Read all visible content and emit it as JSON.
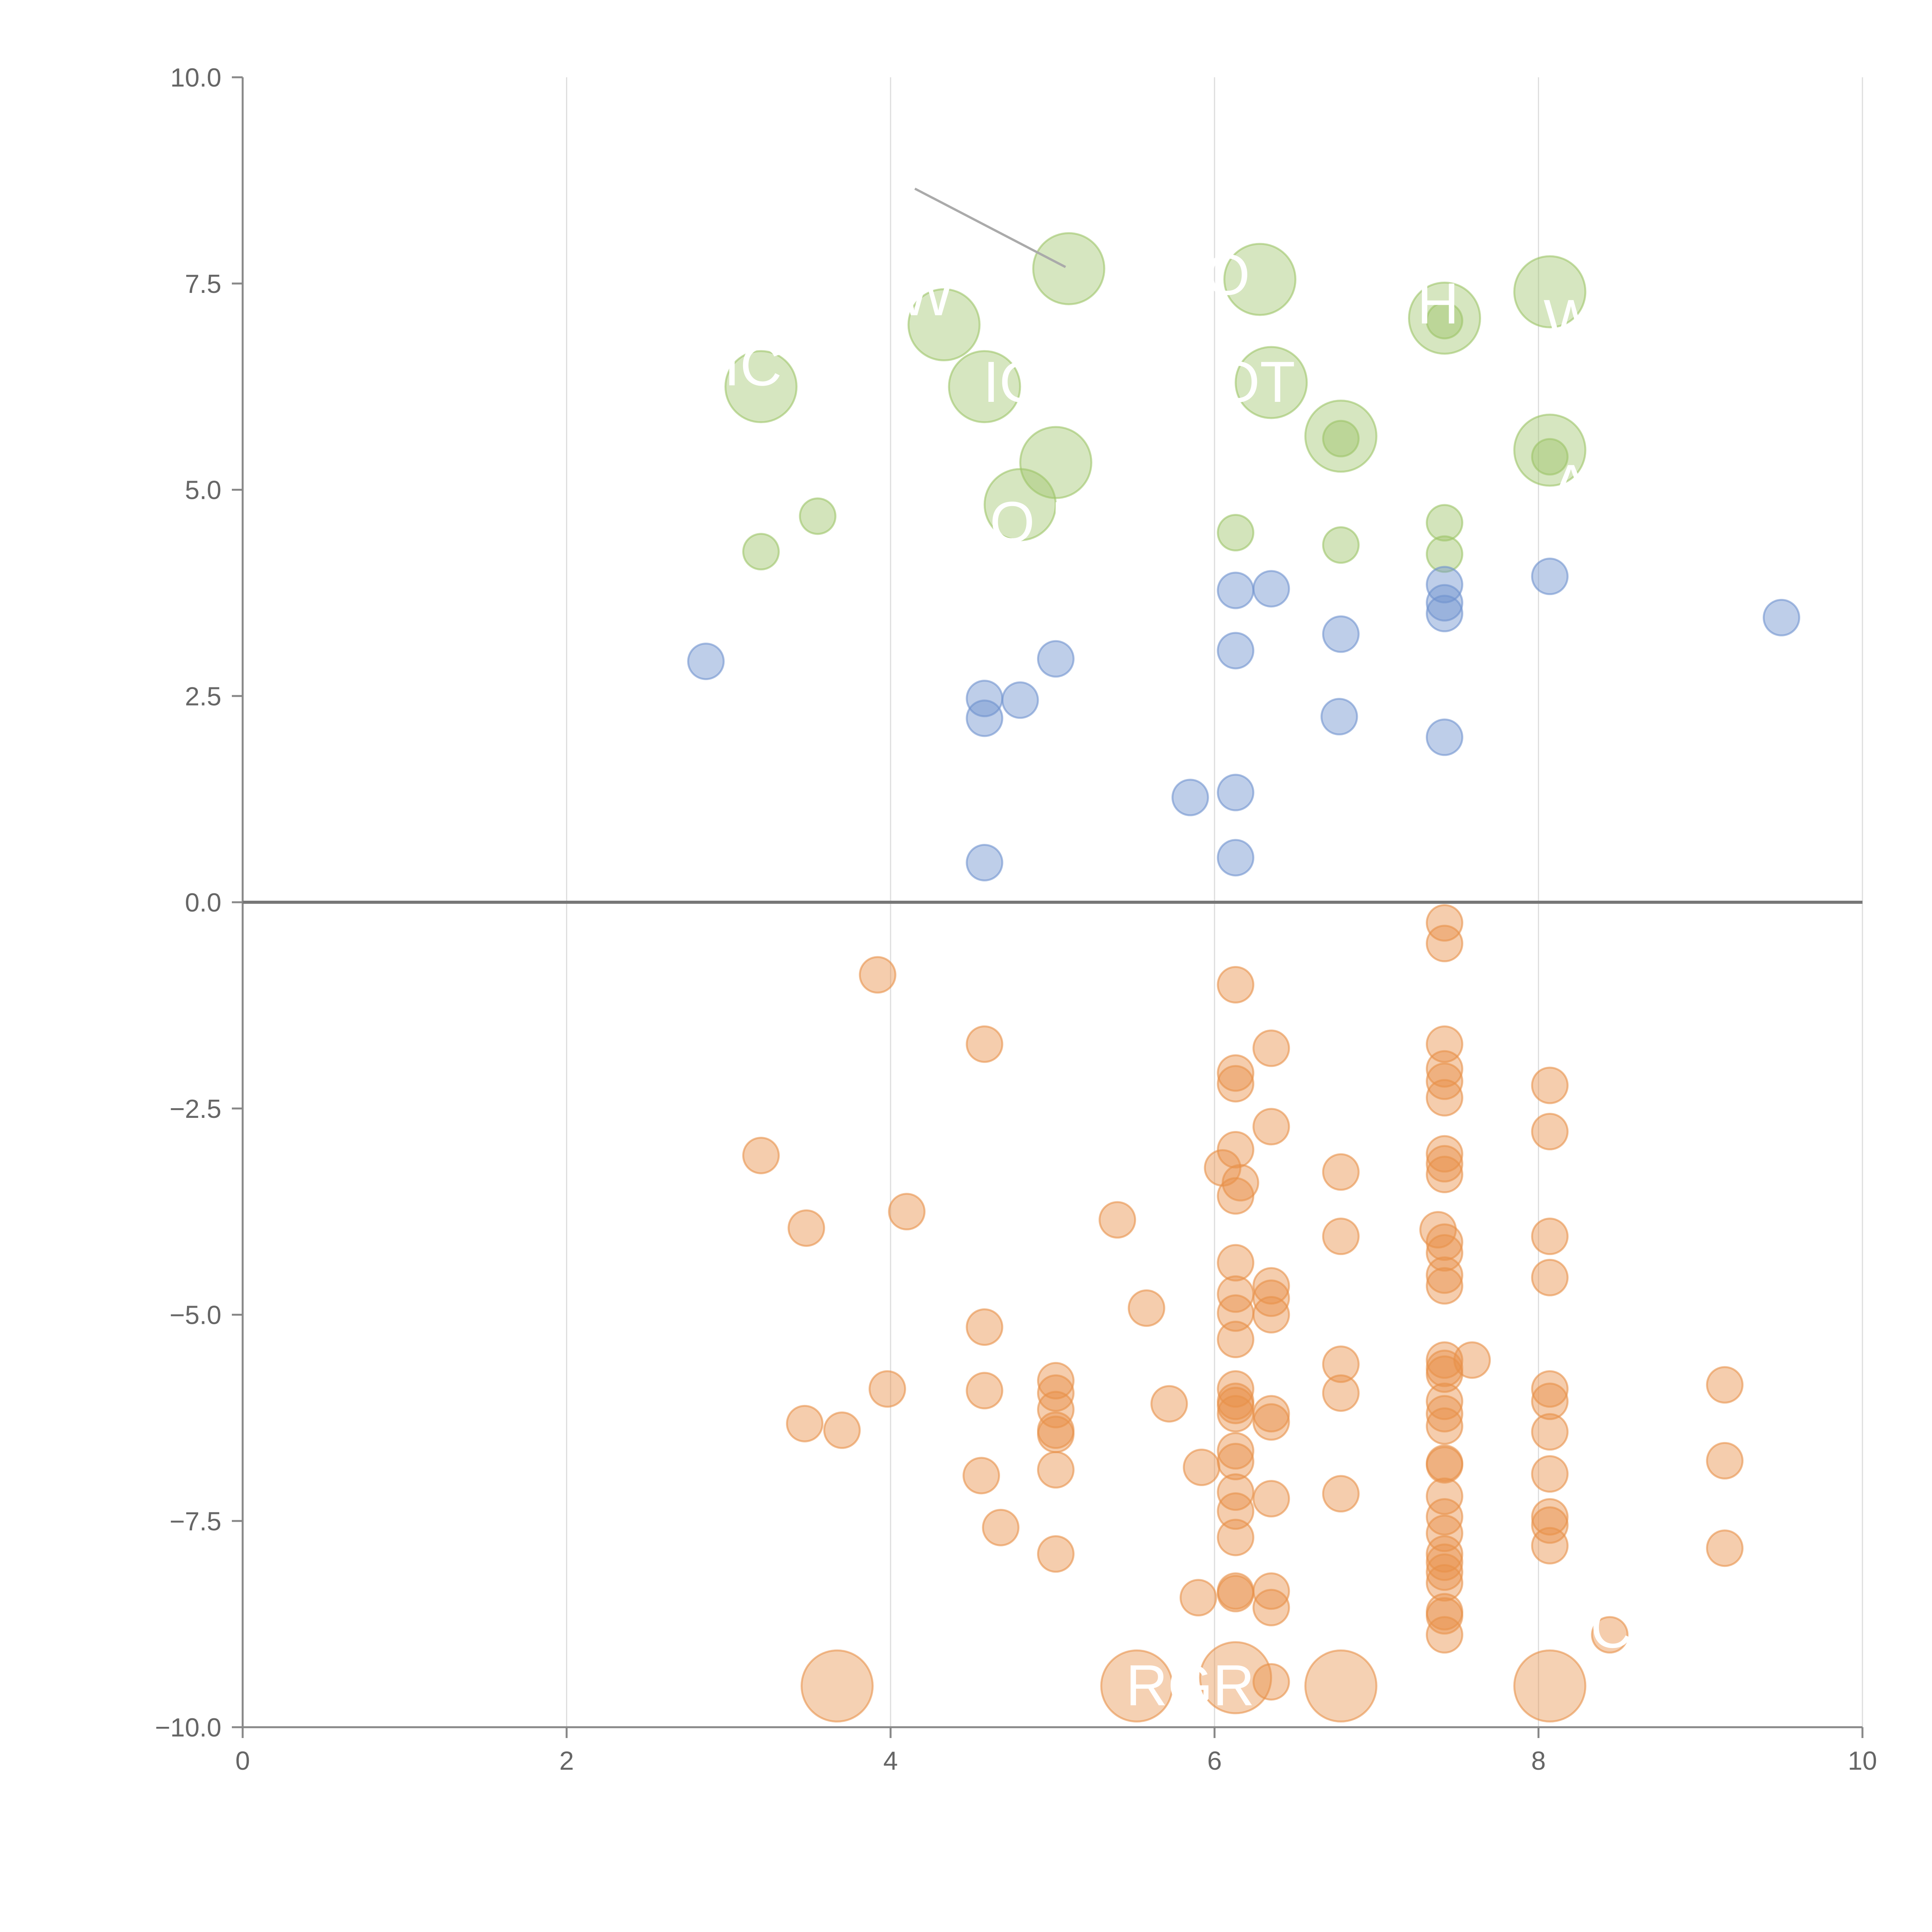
{
  "chart_data": {
    "type": "scatter",
    "title": "",
    "xlabel": "",
    "ylabel": "",
    "xlim": [
      0,
      10
    ],
    "ylim": [
      -10,
      10
    ],
    "x_ticks": [
      "0",
      "2",
      "4",
      "6",
      "8",
      "10"
    ],
    "y_ticks": [
      "−10.0",
      "−7.5",
      "−5.0",
      "−2.5",
      "0.0",
      "2.5",
      "5.0",
      "7.5",
      "10.0"
    ],
    "x_tick_values": [
      0,
      2,
      4,
      6,
      8,
      10
    ],
    "y_tick_values": [
      -10,
      -7.5,
      -5,
      -2.5,
      0,
      2.5,
      5,
      7.5,
      10
    ],
    "grid": "vertical",
    "zero_line": true,
    "legend": "none",
    "colors": {
      "green": "#9dc468",
      "blue": "#6f93cf",
      "orange": "#e8914a",
      "axis": "#888888",
      "grid": "#dddddd",
      "zero_line": "#777777"
    },
    "series": [
      {
        "name": "green",
        "color": "#9dc468",
        "points": [
          {
            "x": 3.2,
            "y": 4.25
          },
          {
            "x": 3.55,
            "y": 4.68
          },
          {
            "x": 6.13,
            "y": 4.48
          },
          {
            "x": 6.78,
            "y": 4.33
          },
          {
            "x": 7.42,
            "y": 4.6
          },
          {
            "x": 7.42,
            "y": 4.22
          },
          {
            "x": 6.78,
            "y": 5.62
          },
          {
            "x": 7.42,
            "y": 7.05
          },
          {
            "x": 8.07,
            "y": 5.4
          }
        ]
      },
      {
        "name": "green-large",
        "color": "#9dc468",
        "size": "large",
        "points": [
          {
            "x": 5.1,
            "y": 7.68
          },
          {
            "x": 6.28,
            "y": 7.55
          },
          {
            "x": 8.07,
            "y": 7.4
          },
          {
            "x": 4.33,
            "y": 7.0
          },
          {
            "x": 7.42,
            "y": 7.08
          },
          {
            "x": 3.2,
            "y": 6.25
          },
          {
            "x": 4.58,
            "y": 6.25
          },
          {
            "x": 6.35,
            "y": 6.3
          },
          {
            "x": 6.78,
            "y": 5.65
          },
          {
            "x": 8.07,
            "y": 5.48
          },
          {
            "x": 5.02,
            "y": 5.33
          },
          {
            "x": 4.8,
            "y": 4.82
          }
        ]
      },
      {
        "name": "blue",
        "color": "#6f93cf",
        "points": [
          {
            "x": 2.86,
            "y": 2.92
          },
          {
            "x": 4.58,
            "y": 2.47
          },
          {
            "x": 4.58,
            "y": 2.23
          },
          {
            "x": 4.8,
            "y": 2.45
          },
          {
            "x": 5.02,
            "y": 2.95
          },
          {
            "x": 4.58,
            "y": 0.48
          },
          {
            "x": 5.85,
            "y": 1.27
          },
          {
            "x": 6.13,
            "y": 3.78
          },
          {
            "x": 6.13,
            "y": 3.05
          },
          {
            "x": 6.13,
            "y": 1.33
          },
          {
            "x": 6.13,
            "y": 0.54
          },
          {
            "x": 6.35,
            "y": 3.8
          },
          {
            "x": 6.78,
            "y": 3.25
          },
          {
            "x": 6.77,
            "y": 2.25
          },
          {
            "x": 7.42,
            "y": 3.85
          },
          {
            "x": 7.42,
            "y": 3.63
          },
          {
            "x": 7.42,
            "y": 3.5
          },
          {
            "x": 7.42,
            "y": 2.0
          },
          {
            "x": 8.07,
            "y": 3.95
          },
          {
            "x": 9.5,
            "y": 3.45
          }
        ]
      },
      {
        "name": "orange",
        "color": "#e8914a",
        "points": [
          {
            "x": 3.2,
            "y": -3.07
          },
          {
            "x": 3.48,
            "y": -3.95
          },
          {
            "x": 3.47,
            "y": -6.32
          },
          {
            "x": 3.7,
            "y": -6.4
          },
          {
            "x": 3.92,
            "y": -0.88
          },
          {
            "x": 3.98,
            "y": -5.9
          },
          {
            "x": 4.1,
            "y": -3.75
          },
          {
            "x": 4.58,
            "y": -1.72
          },
          {
            "x": 4.58,
            "y": -5.15
          },
          {
            "x": 4.58,
            "y": -5.92
          },
          {
            "x": 4.56,
            "y": -6.95
          },
          {
            "x": 4.68,
            "y": -7.58
          },
          {
            "x": 5.02,
            "y": -5.8
          },
          {
            "x": 5.02,
            "y": -5.95
          },
          {
            "x": 5.02,
            "y": -6.15
          },
          {
            "x": 5.02,
            "y": -6.4
          },
          {
            "x": 5.02,
            "y": -6.45
          },
          {
            "x": 5.02,
            "y": -6.88
          },
          {
            "x": 5.02,
            "y": -7.9
          },
          {
            "x": 5.4,
            "y": -3.85
          },
          {
            "x": 5.58,
            "y": -4.92
          },
          {
            "x": 5.72,
            "y": -6.08
          },
          {
            "x": 5.92,
            "y": -6.85
          },
          {
            "x": 5.9,
            "y": -8.43
          },
          {
            "x": 6.13,
            "y": -1.0
          },
          {
            "x": 6.13,
            "y": -2.07
          },
          {
            "x": 6.13,
            "y": -2.2
          },
          {
            "x": 6.13,
            "y": -3.0
          },
          {
            "x": 6.05,
            "y": -3.22
          },
          {
            "x": 6.16,
            "y": -3.4
          },
          {
            "x": 6.13,
            "y": -3.56
          },
          {
            "x": 6.13,
            "y": -4.37
          },
          {
            "x": 6.13,
            "y": -4.75
          },
          {
            "x": 6.13,
            "y": -4.98
          },
          {
            "x": 6.13,
            "y": -5.3
          },
          {
            "x": 6.13,
            "y": -5.9
          },
          {
            "x": 6.13,
            "y": -6.05
          },
          {
            "x": 6.13,
            "y": -6.1
          },
          {
            "x": 6.13,
            "y": -6.2
          },
          {
            "x": 6.13,
            "y": -6.65
          },
          {
            "x": 6.13,
            "y": -6.78
          },
          {
            "x": 6.13,
            "y": -7.15
          },
          {
            "x": 6.13,
            "y": -7.38
          },
          {
            "x": 6.13,
            "y": -7.7
          },
          {
            "x": 6.13,
            "y": -8.35
          },
          {
            "x": 6.13,
            "y": -8.38
          },
          {
            "x": 6.35,
            "y": -1.77
          },
          {
            "x": 6.35,
            "y": -2.72
          },
          {
            "x": 6.35,
            "y": -4.65
          },
          {
            "x": 6.35,
            "y": -4.8
          },
          {
            "x": 6.35,
            "y": -5.0
          },
          {
            "x": 6.35,
            "y": -6.2
          },
          {
            "x": 6.35,
            "y": -6.3
          },
          {
            "x": 6.35,
            "y": -7.23
          },
          {
            "x": 6.35,
            "y": -8.35
          },
          {
            "x": 6.35,
            "y": -8.55
          },
          {
            "x": 6.35,
            "y": -9.45
          },
          {
            "x": 6.78,
            "y": -3.27
          },
          {
            "x": 6.78,
            "y": -4.05
          },
          {
            "x": 6.78,
            "y": -5.6
          },
          {
            "x": 6.78,
            "y": -5.95
          },
          {
            "x": 6.78,
            "y": -7.17
          },
          {
            "x": 7.42,
            "y": -0.25
          },
          {
            "x": 7.42,
            "y": -0.5
          },
          {
            "x": 7.42,
            "y": -1.72
          },
          {
            "x": 7.42,
            "y": -2.02
          },
          {
            "x": 7.42,
            "y": -2.17
          },
          {
            "x": 7.42,
            "y": -2.37
          },
          {
            "x": 7.42,
            "y": -3.05
          },
          {
            "x": 7.42,
            "y": -3.17
          },
          {
            "x": 7.42,
            "y": -3.3
          },
          {
            "x": 7.38,
            "y": -3.97
          },
          {
            "x": 7.42,
            "y": -4.12
          },
          {
            "x": 7.42,
            "y": -4.25
          },
          {
            "x": 7.42,
            "y": -4.52
          },
          {
            "x": 7.42,
            "y": -4.65
          },
          {
            "x": 7.42,
            "y": -5.55
          },
          {
            "x": 7.42,
            "y": -5.65
          },
          {
            "x": 7.42,
            "y": -5.72
          },
          {
            "x": 7.42,
            "y": -6.05
          },
          {
            "x": 7.42,
            "y": -6.2
          },
          {
            "x": 7.42,
            "y": -6.35
          },
          {
            "x": 7.42,
            "y": -6.8
          },
          {
            "x": 7.42,
            "y": -6.82
          },
          {
            "x": 7.42,
            "y": -7.2
          },
          {
            "x": 7.42,
            "y": -7.45
          },
          {
            "x": 7.42,
            "y": -7.65
          },
          {
            "x": 7.42,
            "y": -7.9
          },
          {
            "x": 7.42,
            "y": -8.0
          },
          {
            "x": 7.42,
            "y": -8.12
          },
          {
            "x": 7.42,
            "y": -8.25
          },
          {
            "x": 7.42,
            "y": -8.6
          },
          {
            "x": 7.42,
            "y": -8.65
          },
          {
            "x": 7.42,
            "y": -8.88
          },
          {
            "x": 7.59,
            "y": -5.55
          },
          {
            "x": 8.07,
            "y": -2.22
          },
          {
            "x": 8.07,
            "y": -2.78
          },
          {
            "x": 8.07,
            "y": -4.05
          },
          {
            "x": 8.07,
            "y": -4.55
          },
          {
            "x": 8.07,
            "y": -5.9
          },
          {
            "x": 8.07,
            "y": -6.05
          },
          {
            "x": 8.07,
            "y": -6.42
          },
          {
            "x": 8.07,
            "y": -6.93
          },
          {
            "x": 8.07,
            "y": -7.45
          },
          {
            "x": 8.07,
            "y": -7.55
          },
          {
            "x": 8.07,
            "y": -7.8
          },
          {
            "x": 8.44,
            "y": -8.88
          },
          {
            "x": 9.15,
            "y": -5.85
          },
          {
            "x": 9.15,
            "y": -6.77
          },
          {
            "x": 9.15,
            "y": -7.83
          }
        ]
      },
      {
        "name": "orange-large",
        "color": "#e8914a",
        "size": "large",
        "points": [
          {
            "x": 3.67,
            "y": -9.5
          },
          {
            "x": 5.52,
            "y": -9.5
          },
          {
            "x": 6.13,
            "y": -9.4
          },
          {
            "x": 6.78,
            "y": -9.5
          },
          {
            "x": 8.07,
            "y": -9.5
          }
        ]
      }
    ],
    "annotations": [
      {
        "text": "W",
        "x": 4.22,
        "y": 7.35
      },
      {
        "text": "O",
        "x": 6.08,
        "y": 7.6
      },
      {
        "text": "H",
        "x": 7.38,
        "y": 7.25
      },
      {
        "text": "W",
        "x": 8.2,
        "y": 7.05
      },
      {
        "text": "IC",
        "x": 3.15,
        "y": 6.5
      },
      {
        "text": "IC",
        "x": 4.75,
        "y": 6.3
      },
      {
        "text": "OT",
        "x": 6.25,
        "y": 6.3
      },
      {
        "text": "A",
        "x": 8.2,
        "y": 5.05
      },
      {
        "text": "O M",
        "x": 4.95,
        "y": 4.6
      },
      {
        "text": "RGR",
        "x": 5.85,
        "y": -9.5
      },
      {
        "text": "C",
        "x": 8.45,
        "y": -8.8
      }
    ]
  }
}
